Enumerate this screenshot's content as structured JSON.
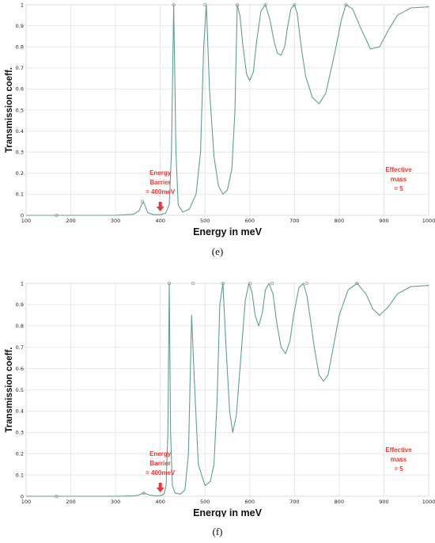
{
  "chart_data": [
    {
      "type": "line",
      "panel_label": "(e)",
      "xlabel": "Energy in meV",
      "ylabel": "Transmission coeff.",
      "xlim": [
        100,
        1000
      ],
      "ylim": [
        0,
        1
      ],
      "x_ticks": [
        100,
        200,
        300,
        400,
        500,
        600,
        700,
        800,
        900,
        1000
      ],
      "y_ticks": [
        0,
        0.1,
        0.2,
        0.3,
        0.4,
        0.5,
        0.6,
        0.7,
        0.8,
        0.9,
        1
      ],
      "grid": true,
      "colors": {
        "line": "#5f9e97",
        "marker": "#8a8a8a",
        "annotation": "#e53935"
      },
      "series": [
        {
          "x": [
            100,
            168,
            300,
            340,
            352,
            357,
            362,
            367,
            372,
            385,
            400,
            412,
            420,
            425,
            430,
            435,
            440,
            450,
            465,
            480,
            490,
            497,
            503,
            510,
            520,
            530,
            540,
            550,
            560,
            567,
            572,
            578,
            585,
            593,
            600,
            608,
            615,
            625,
            635,
            645,
            655,
            662,
            670,
            678,
            685,
            692,
            700,
            706,
            715,
            725,
            740,
            755,
            770,
            790,
            805,
            815,
            830,
            850,
            870,
            890,
            910,
            930,
            960,
            1000
          ],
          "y": [
            0,
            0,
            0,
            0.005,
            0.02,
            0.045,
            0.065,
            0.04,
            0.012,
            0.003,
            0.003,
            0.01,
            0.05,
            0.3,
            1.0,
            0.3,
            0.05,
            0.015,
            0.03,
            0.1,
            0.3,
            0.8,
            1.0,
            0.6,
            0.28,
            0.14,
            0.1,
            0.12,
            0.22,
            0.5,
            1.0,
            0.95,
            0.8,
            0.67,
            0.64,
            0.68,
            0.82,
            0.97,
            1.0,
            0.93,
            0.82,
            0.77,
            0.76,
            0.8,
            0.9,
            0.98,
            1.0,
            0.96,
            0.8,
            0.66,
            0.56,
            0.53,
            0.58,
            0.77,
            0.93,
            1.0,
            0.98,
            0.88,
            0.79,
            0.8,
            0.88,
            0.95,
            0.985,
            0.99
          ]
        }
      ],
      "resonance_markers": [
        {
          "x": 168,
          "y": 0
        },
        {
          "x": 360,
          "y": 0.065
        },
        {
          "x": 430,
          "y": 1
        },
        {
          "x": 500,
          "y": 1
        },
        {
          "x": 572,
          "y": 1
        },
        {
          "x": 635,
          "y": 1
        },
        {
          "x": 700,
          "y": 1
        },
        {
          "x": 815,
          "y": 1
        }
      ],
      "annotations": {
        "barrier": {
          "lines": [
            "Energy",
            "Barrier",
            "= 400meV"
          ],
          "arrow_x": 400
        },
        "mass": {
          "lines": [
            "Effective",
            "mass",
            "= 5"
          ]
        }
      }
    },
    {
      "type": "line",
      "panel_label": "(f)",
      "xlabel": "Energy in meV",
      "ylabel": "Transmission coeff.",
      "xlim": [
        100,
        1000
      ],
      "ylim": [
        0,
        1
      ],
      "x_ticks": [
        100,
        200,
        300,
        400,
        500,
        600,
        700,
        800,
        900,
        1000
      ],
      "y_ticks": [
        0,
        0.1,
        0.2,
        0.3,
        0.4,
        0.5,
        0.6,
        0.7,
        0.8,
        0.9,
        1
      ],
      "grid": true,
      "colors": {
        "line": "#5f9e97",
        "marker": "#8a8a8a",
        "annotation": "#e53935"
      },
      "series": [
        {
          "x": [
            100,
            168,
            300,
            340,
            352,
            358,
            363,
            368,
            375,
            390,
            400,
            408,
            413,
            417,
            420,
            423,
            427,
            433,
            445,
            455,
            463,
            470,
            476,
            485,
            500,
            512,
            520,
            527,
            533,
            540,
            547,
            555,
            562,
            570,
            580,
            590,
            598,
            605,
            612,
            620,
            628,
            635,
            643,
            652,
            660,
            670,
            680,
            690,
            698,
            710,
            720,
            728,
            735,
            745,
            755,
            765,
            775,
            785,
            800,
            820,
            840,
            860,
            875,
            890,
            910,
            930,
            960,
            1000
          ],
          "y": [
            0,
            0,
            0,
            0.002,
            0.006,
            0.012,
            0.015,
            0.012,
            0.006,
            0.002,
            0.003,
            0.01,
            0.05,
            0.3,
            1.0,
            0.3,
            0.05,
            0.015,
            0.01,
            0.03,
            0.2,
            0.85,
            0.55,
            0.15,
            0.05,
            0.07,
            0.15,
            0.45,
            0.9,
            1.0,
            0.7,
            0.4,
            0.3,
            0.38,
            0.65,
            0.92,
            1.0,
            0.96,
            0.85,
            0.8,
            0.86,
            0.97,
            1.0,
            0.95,
            0.82,
            0.7,
            0.67,
            0.73,
            0.85,
            0.98,
            1.0,
            0.94,
            0.84,
            0.69,
            0.57,
            0.54,
            0.57,
            0.68,
            0.85,
            0.97,
            1.0,
            0.95,
            0.88,
            0.85,
            0.89,
            0.95,
            0.985,
            0.99
          ]
        }
      ],
      "resonance_markers": [
        {
          "x": 168,
          "y": 0
        },
        {
          "x": 363,
          "y": 0.015
        },
        {
          "x": 420,
          "y": 1
        },
        {
          "x": 473,
          "y": 1
        },
        {
          "x": 540,
          "y": 1
        },
        {
          "x": 601,
          "y": 1
        },
        {
          "x": 650,
          "y": 1
        },
        {
          "x": 727,
          "y": 1
        },
        {
          "x": 840,
          "y": 1
        }
      ],
      "annotations": {
        "barrier": {
          "lines": [
            "Energy",
            "Barrier",
            "= 400meV"
          ],
          "arrow_x": 400
        },
        "mass": {
          "lines": [
            "Effective",
            "mass",
            "= 5"
          ]
        }
      }
    }
  ]
}
